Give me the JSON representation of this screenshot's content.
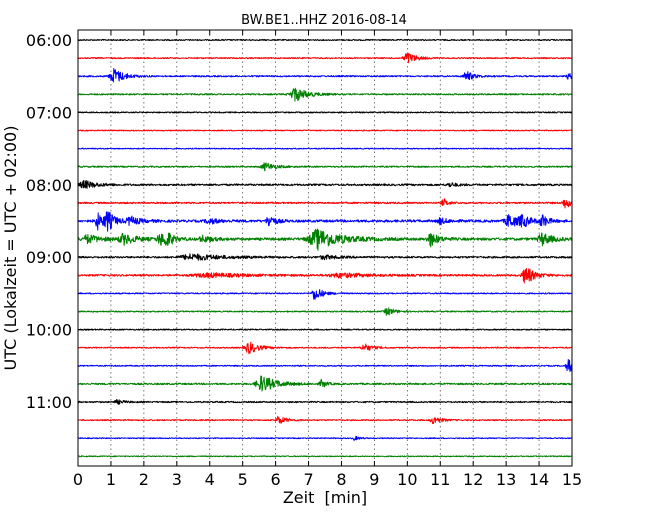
{
  "chart_data": {
    "type": "line",
    "title": "BW.BE1..HHZ 2016-08-14",
    "xlabel": "Zeit  [min]",
    "ylabel": "UTC (Lokalzeit = UTC + 02:00)",
    "xlim": [
      0,
      15
    ],
    "x_ticks": [
      "0",
      "1",
      "2",
      "3",
      "4",
      "5",
      "6",
      "7",
      "8",
      "9",
      "10",
      "11",
      "12",
      "13",
      "14",
      "15"
    ],
    "y_ticks": [
      "06:00",
      "07:00",
      "08:00",
      "09:00",
      "10:00",
      "11:00"
    ],
    "grid": true,
    "colors": [
      "#000000",
      "#ff0000",
      "#0000ff",
      "#008000"
    ],
    "traces": [
      {
        "label": "06:00",
        "color_index": 0,
        "noise": 0.6,
        "events": []
      },
      {
        "label": "06:15",
        "color_index": 1,
        "noise": 0.6,
        "events": [
          {
            "t": 10.0,
            "amp": 6,
            "dur": 0.35
          }
        ]
      },
      {
        "label": "06:30",
        "color_index": 2,
        "noise": 0.7,
        "events": [
          {
            "t": 1.1,
            "amp": 8,
            "dur": 0.4
          },
          {
            "t": 11.8,
            "amp": 5,
            "dur": 0.3
          },
          {
            "t": 14.9,
            "amp": 3,
            "dur": 0.2
          }
        ]
      },
      {
        "label": "06:45",
        "color_index": 3,
        "noise": 0.7,
        "events": [
          {
            "t": 6.6,
            "amp": 7,
            "dur": 0.5
          }
        ]
      },
      {
        "label": "07:00",
        "color_index": 0,
        "noise": 0.6,
        "events": []
      },
      {
        "label": "07:15",
        "color_index": 1,
        "noise": 0.5,
        "events": []
      },
      {
        "label": "07:30",
        "color_index": 2,
        "noise": 0.5,
        "events": []
      },
      {
        "label": "07:45",
        "color_index": 3,
        "noise": 0.7,
        "events": [
          {
            "t": 5.7,
            "amp": 4,
            "dur": 0.4
          }
        ]
      },
      {
        "label": "08:00",
        "color_index": 0,
        "noise": 0.9,
        "events": [
          {
            "t": 0.2,
            "amp": 4,
            "dur": 0.5
          },
          {
            "t": 11.3,
            "amp": 2,
            "dur": 0.3
          }
        ]
      },
      {
        "label": "08:15",
        "color_index": 1,
        "noise": 0.8,
        "events": [
          {
            "t": 11.1,
            "amp": 4,
            "dur": 0.2
          },
          {
            "t": 14.8,
            "amp": 5,
            "dur": 0.3
          }
        ]
      },
      {
        "label": "08:30",
        "color_index": 2,
        "noise": 1.2,
        "events": [
          {
            "t": 0.6,
            "amp": 8,
            "dur": 0.25
          },
          {
            "t": 0.9,
            "amp": 9,
            "dur": 0.3
          },
          {
            "t": 1.6,
            "amp": 4,
            "dur": 0.4
          },
          {
            "t": 5.8,
            "amp": 6,
            "dur": 0.25
          },
          {
            "t": 13.1,
            "amp": 7,
            "dur": 0.4
          },
          {
            "t": 13.5,
            "amp": 5,
            "dur": 0.3
          },
          {
            "t": 14.1,
            "amp": 6,
            "dur": 0.25
          },
          {
            "t": 11.0,
            "amp": 3,
            "dur": 0.3
          },
          {
            "t": 4.0,
            "amp": 2.5,
            "dur": 0.4
          }
        ]
      },
      {
        "label": "08:45",
        "color_index": 3,
        "noise": 1.3,
        "events": [
          {
            "t": 0.3,
            "amp": 4,
            "dur": 0.5
          },
          {
            "t": 1.4,
            "amp": 5,
            "dur": 0.5
          },
          {
            "t": 2.5,
            "amp": 6,
            "dur": 0.3
          },
          {
            "t": 2.7,
            "amp": 6,
            "dur": 0.25
          },
          {
            "t": 3.8,
            "amp": 3,
            "dur": 0.4
          },
          {
            "t": 7.3,
            "amp": 10,
            "dur": 0.9
          },
          {
            "t": 10.7,
            "amp": 7,
            "dur": 0.3
          },
          {
            "t": 14.1,
            "amp": 6,
            "dur": 0.4
          }
        ]
      },
      {
        "label": "09:00",
        "color_index": 0,
        "noise": 0.9,
        "events": [
          {
            "t": 3.5,
            "amp": 3,
            "dur": 1.2
          },
          {
            "t": 7.5,
            "amp": 2,
            "dur": 0.5
          }
        ]
      },
      {
        "label": "09:15",
        "color_index": 1,
        "noise": 0.9,
        "events": [
          {
            "t": 13.6,
            "amp": 9,
            "dur": 0.35
          },
          {
            "t": 4.0,
            "amp": 2,
            "dur": 1.5
          },
          {
            "t": 8.0,
            "amp": 2,
            "dur": 1.2
          }
        ]
      },
      {
        "label": "09:30",
        "color_index": 2,
        "noise": 0.6,
        "events": [
          {
            "t": 7.2,
            "amp": 7,
            "dur": 0.3
          }
        ]
      },
      {
        "label": "09:45",
        "color_index": 3,
        "noise": 0.6,
        "events": [
          {
            "t": 9.4,
            "amp": 4,
            "dur": 0.3
          }
        ]
      },
      {
        "label": "10:00",
        "color_index": 0,
        "noise": 0.6,
        "events": []
      },
      {
        "label": "10:15",
        "color_index": 1,
        "noise": 0.6,
        "events": [
          {
            "t": 5.2,
            "amp": 6,
            "dur": 0.4
          },
          {
            "t": 8.7,
            "amp": 4,
            "dur": 0.3
          }
        ]
      },
      {
        "label": "10:30",
        "color_index": 2,
        "noise": 0.6,
        "events": [
          {
            "t": 14.9,
            "amp": 7,
            "dur": 0.25
          }
        ]
      },
      {
        "label": "10:45",
        "color_index": 3,
        "noise": 0.8,
        "events": [
          {
            "t": 5.6,
            "amp": 8,
            "dur": 0.6
          },
          {
            "t": 7.4,
            "amp": 4,
            "dur": 0.2
          }
        ]
      },
      {
        "label": "11:00",
        "color_index": 0,
        "noise": 0.7,
        "events": [
          {
            "t": 1.2,
            "amp": 2,
            "dur": 0.3
          }
        ]
      },
      {
        "label": "11:15",
        "color_index": 1,
        "noise": 0.6,
        "events": [
          {
            "t": 6.1,
            "amp": 4,
            "dur": 0.3
          },
          {
            "t": 10.8,
            "amp": 4,
            "dur": 0.3
          }
        ]
      },
      {
        "label": "11:30",
        "color_index": 2,
        "noise": 0.5,
        "events": [
          {
            "t": 8.4,
            "amp": 2,
            "dur": 0.2
          }
        ]
      },
      {
        "label": "11:45",
        "color_index": 3,
        "noise": 0.5,
        "events": []
      }
    ]
  }
}
